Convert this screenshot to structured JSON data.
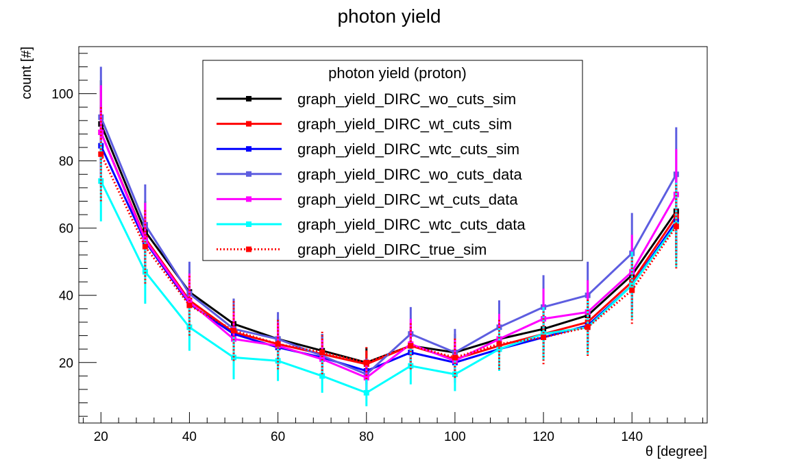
{
  "chart_data": {
    "type": "line",
    "title": "photon yield",
    "xlabel": "θ [degree]",
    "ylabel": "count [#]",
    "xlim": [
      15,
      157
    ],
    "ylim": [
      2,
      114
    ],
    "x_ticks": [
      "20",
      "40",
      "60",
      "80",
      "100",
      "120",
      "140"
    ],
    "y_ticks": [
      "20",
      "40",
      "60",
      "80",
      "100"
    ],
    "legend": {
      "title": "photon yield (proton)",
      "placement": "top-center"
    },
    "x": [
      20,
      30,
      40,
      50,
      60,
      70,
      80,
      90,
      100,
      110,
      120,
      130,
      140,
      150
    ],
    "series": [
      {
        "name": "graph_yield_DIRC_wo_cuts_sim",
        "color": "#000000",
        "dash": "solid",
        "values": [
          91,
          59,
          41,
          31.5,
          27,
          23.5,
          20,
          25,
          23,
          27,
          30,
          34,
          46,
          65
        ],
        "errors": [
          13,
          9,
          6.5,
          7.5,
          6,
          5,
          4.5,
          5,
          5.5,
          6,
          6.5,
          7,
          8,
          11
        ]
      },
      {
        "name": "graph_yield_DIRC_wt_cuts_sim",
        "color": "#ff0000",
        "dash": "solid",
        "values": [
          88.5,
          57,
          38.5,
          29,
          25.5,
          22.5,
          19.5,
          25,
          21,
          25,
          28.5,
          32,
          44,
          63.5
        ],
        "errors": [
          12.5,
          8.5,
          6,
          6.5,
          5.5,
          4.5,
          4,
          5,
          5,
          5.5,
          6,
          6.5,
          7.5,
          10.5
        ]
      },
      {
        "name": "graph_yield_DIRC_wtc_cuts_sim",
        "color": "#0000ff",
        "dash": "solid",
        "values": [
          84.5,
          56,
          37.5,
          28.5,
          24.5,
          21.5,
          17.5,
          23,
          20,
          24,
          27.5,
          31,
          43,
          62
        ],
        "errors": [
          12,
          8.5,
          6,
          6.5,
          5.5,
          4.5,
          4,
          5,
          5,
          5.5,
          6,
          6.5,
          7.5,
          10.5
        ]
      },
      {
        "name": "graph_yield_DIRC_wo_cuts_data",
        "color": "#5d5de0",
        "dash": "solid",
        "values": [
          93,
          61,
          40.5,
          30,
          27,
          22,
          16.5,
          28.5,
          23,
          30.5,
          36.5,
          40,
          52.5,
          76
        ],
        "errors": [
          15,
          12,
          9.5,
          9,
          8,
          6.5,
          5,
          8,
          7,
          8,
          9.5,
          10,
          12,
          14
        ]
      },
      {
        "name": "graph_yield_DIRC_wt_cuts_data",
        "color": "#ff00ff",
        "dash": "solid",
        "values": [
          88.5,
          56.5,
          38,
          27,
          25,
          21,
          15.5,
          25.5,
          20.5,
          27,
          33,
          35,
          47,
          70
        ],
        "errors": [
          14,
          11,
          8.5,
          8,
          7,
          6,
          4.5,
          7.5,
          6.5,
          7.5,
          9,
          9.5,
          11,
          13.5
        ]
      },
      {
        "name": "graph_yield_DIRC_wtc_cuts_data",
        "color": "#00ffff",
        "dash": "solid",
        "values": [
          74,
          47,
          30.5,
          21.5,
          20.5,
          16,
          11,
          19,
          16.5,
          24,
          28.5,
          30.5,
          43,
          61
        ],
        "errors": [
          12,
          9.5,
          7,
          6.5,
          6,
          5,
          4,
          5.5,
          5,
          6.5,
          8,
          8,
          10,
          12.5
        ]
      },
      {
        "name": "graph_yield_DIRC_true_sim",
        "color": "#ff0000",
        "dash": "dotted",
        "values": [
          82,
          54.5,
          37,
          29.5,
          25.5,
          23,
          20,
          25,
          21.5,
          25.5,
          27.5,
          30.5,
          41.5,
          60.5
        ],
        "errors": [
          14,
          11,
          9,
          9,
          7.5,
          6.5,
          5,
          7,
          6,
          7.5,
          8,
          8.5,
          10,
          12.5
        ]
      }
    ]
  }
}
